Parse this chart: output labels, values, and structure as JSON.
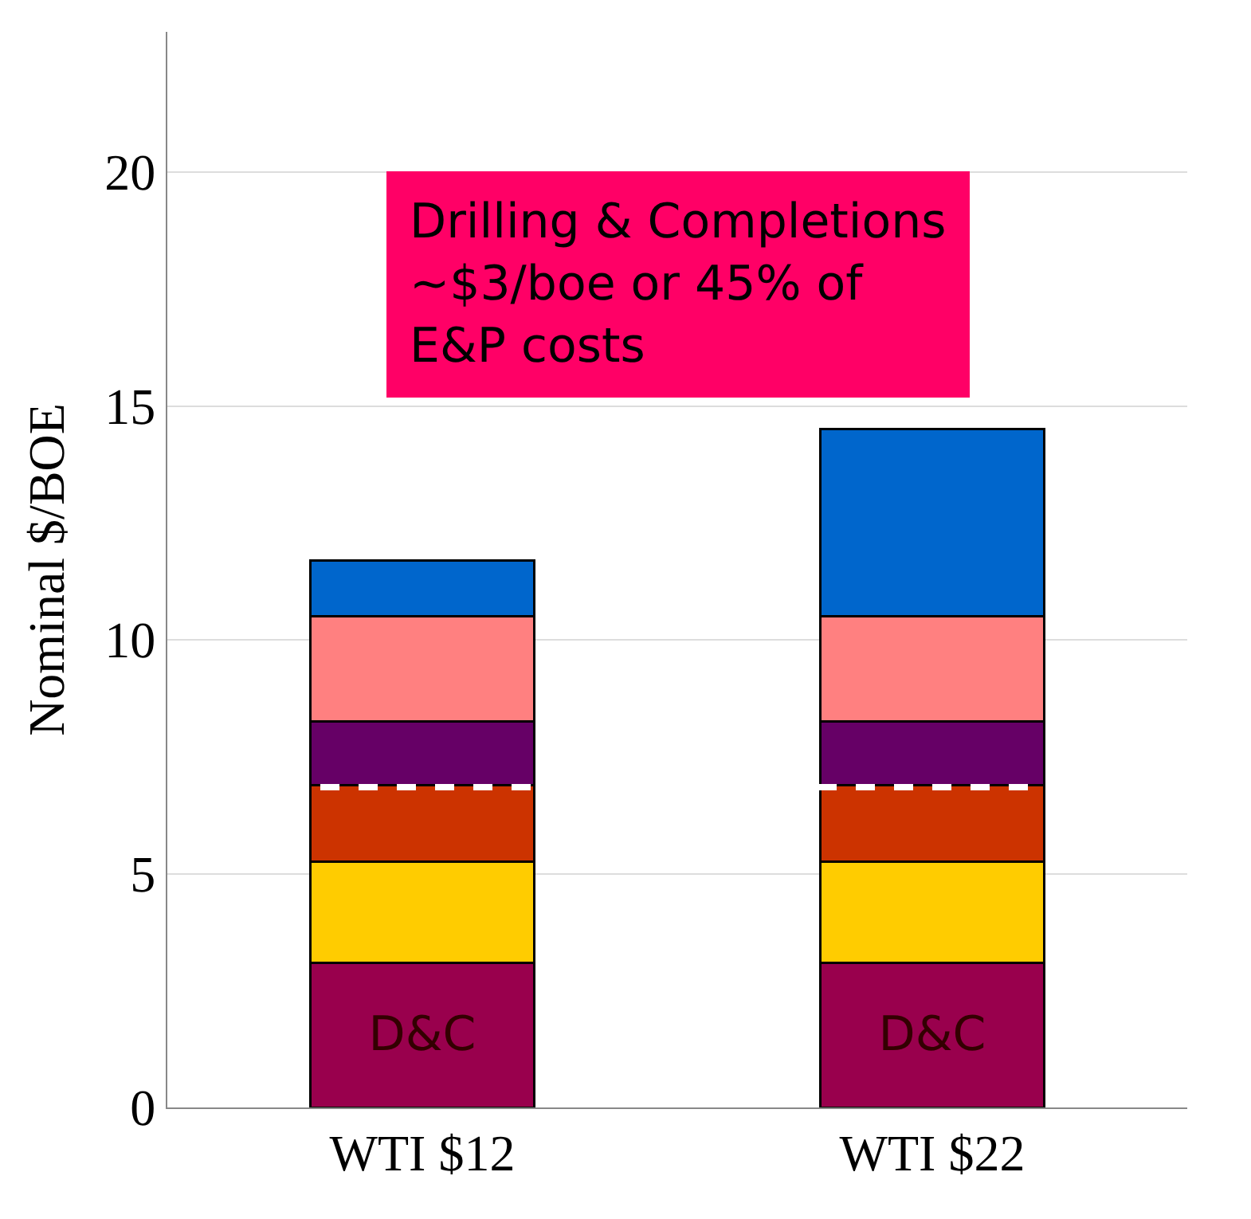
{
  "chart_data": {
    "type": "bar",
    "stacked": true,
    "ylabel": "Nominal $/BOE",
    "categories": [
      "WTI $12",
      "WTI $22"
    ],
    "series": [
      {
        "color": "#99004d",
        "values": [
          3.1,
          3.1
        ],
        "value_labels": [
          "D&C",
          "D&C"
        ]
      },
      {
        "color": "#ffcc00",
        "values": [
          2.15,
          2.15
        ]
      },
      {
        "color": "#cc3300",
        "values": [
          1.65,
          1.65
        ]
      },
      {
        "color": "#660066",
        "values": [
          1.35,
          1.35
        ]
      },
      {
        "color": "#ff8080",
        "values": [
          2.25,
          2.25
        ]
      },
      {
        "color": "#0066cc",
        "values": [
          1.2,
          4.0
        ]
      }
    ],
    "ylim": [
      0,
      23
    ],
    "yticks": [
      0,
      5,
      10,
      15,
      20
    ],
    "grid": "y",
    "legend": false,
    "ref_lines": [
      {
        "axis": "y",
        "value": 6.85,
        "color": "#ffffff",
        "line_style": "dashed"
      }
    ],
    "annotations": [
      "Drilling & Completions\n~$3/boe or 45% of\nE&P costs"
    ]
  }
}
